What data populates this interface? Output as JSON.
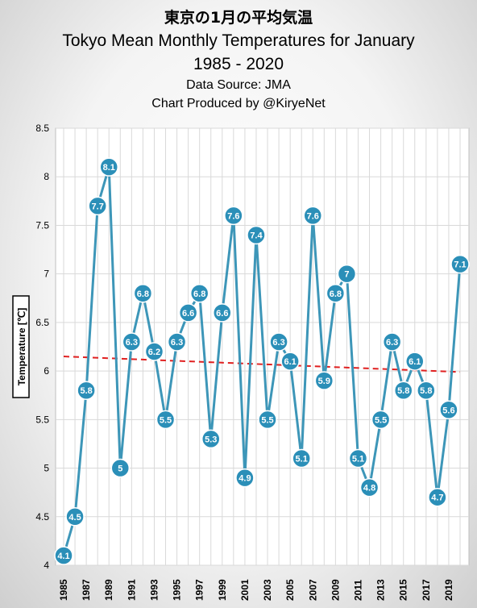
{
  "chart_data": {
    "type": "line",
    "title_jp": "東京の1月の平均気温",
    "title": "Tokyo Mean Monthly Temperatures for January",
    "years_range": "1985 - 2020",
    "source": "Data Source: JMA",
    "credit": "Chart Produced by @KiryeNet",
    "ylabel": "Temperature [℃]",
    "xlabel": "",
    "ylim": [
      4,
      8.5
    ],
    "yticks": [
      "4",
      "4.5",
      "5",
      "5.5",
      "6",
      "6.5",
      "7",
      "7.5",
      "8",
      "8.5"
    ],
    "x": [
      1985,
      1986,
      1987,
      1988,
      1989,
      1990,
      1991,
      1992,
      1993,
      1994,
      1995,
      1996,
      1997,
      1998,
      1999,
      2000,
      2001,
      2002,
      2003,
      2004,
      2005,
      2006,
      2007,
      2008,
      2009,
      2010,
      2011,
      2012,
      2013,
      2014,
      2015,
      2016,
      2017,
      2018,
      2019,
      2020
    ],
    "xticks": [
      "1985",
      "1987",
      "1989",
      "1991",
      "1993",
      "1995",
      "1997",
      "1999",
      "2001",
      "2003",
      "2005",
      "2007",
      "2009",
      "2011",
      "2013",
      "2015",
      "2017",
      "2019"
    ],
    "values": [
      4.1,
      4.5,
      5.8,
      7.7,
      8.1,
      5.0,
      6.3,
      6.8,
      6.2,
      5.5,
      6.3,
      6.6,
      6.8,
      5.3,
      6.6,
      7.6,
      4.9,
      7.4,
      5.5,
      6.3,
      6.1,
      5.1,
      7.6,
      5.9,
      6.8,
      7.0,
      5.1,
      4.8,
      5.5,
      6.3,
      5.8,
      6.1,
      5.8,
      4.7,
      5.6,
      7.1
    ],
    "labels": [
      "4.1",
      "4.5",
      "5.8",
      "7.7",
      "8.1",
      "5",
      "6.3",
      "6.8",
      "6.2",
      "5.5",
      "6.3",
      "6.6",
      "6.8",
      "5.3",
      "6.6",
      "7.6",
      "4.9",
      "7.4",
      "5.5",
      "6.3",
      "6.1",
      "5.1",
      "7.6",
      "5.9",
      "6.8",
      "7",
      "5.1",
      "4.8",
      "5.5",
      "6.3",
      "5.8",
      "6.1",
      "5.8",
      "4.7",
      "5.6",
      "7.1"
    ],
    "trend": {
      "start": 6.15,
      "end": 5.99,
      "style": "dashed"
    },
    "grid": true,
    "colors": {
      "series": "#3d96b8",
      "marker": "#2b8fb8",
      "trend": "#e02020",
      "grid": "#d9d9d9"
    }
  }
}
